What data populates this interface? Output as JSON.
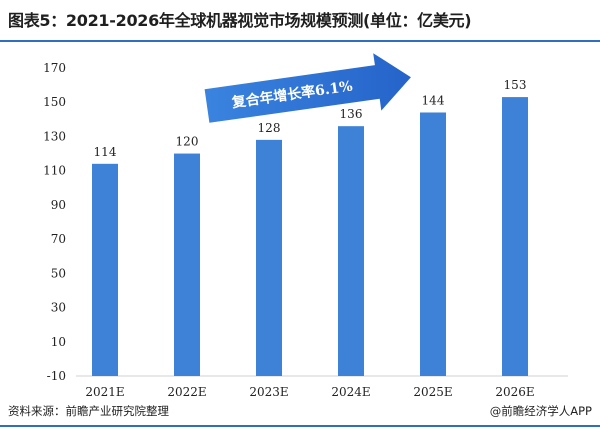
{
  "header": {
    "title": "图表5：2021-2026年全球机器视觉市场规模预测(单位：亿美元)"
  },
  "footer": {
    "source": "资料来源：前瞻产业研究院整理",
    "brand": "@前瞻经济学人APP"
  },
  "chart_data": {
    "type": "bar",
    "categories": [
      "2021E",
      "2022E",
      "2023E",
      "2024E",
      "2025E",
      "2026E"
    ],
    "values": [
      114,
      120,
      128,
      136,
      144,
      153
    ],
    "ylim": [
      -10,
      170
    ],
    "yticks": [
      -10,
      10,
      30,
      50,
      70,
      90,
      110,
      130,
      150,
      170
    ],
    "annotation": "复合年增长率6.1%",
    "grid": false,
    "bar_color": "#3d82d6",
    "arrow_color": "#2f73d9"
  }
}
